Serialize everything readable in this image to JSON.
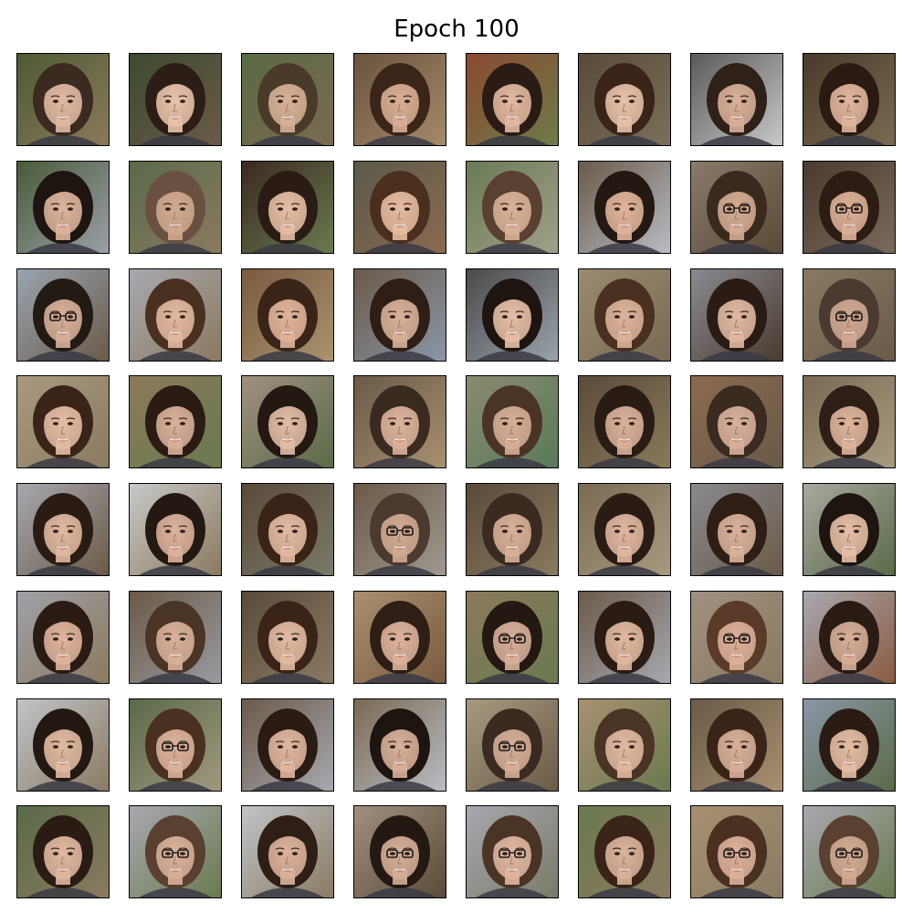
{
  "figure": {
    "title": "Epoch 100"
  },
  "grid": {
    "rows": 8,
    "cols": 8,
    "image_kind": "generated-face",
    "cells": [
      {
        "hair": "#3a2a20",
        "skin": "#e0b9a3",
        "bg": "#8a7a5a",
        "bg2": "#4e5a35",
        "glasses": false
      },
      {
        "hair": "#2c1e16",
        "skin": "#e8c2ab",
        "bg": "#6a5a4a",
        "bg2": "#3d4a30",
        "glasses": false
      },
      {
        "hair": "#4a3a2a",
        "skin": "#d6b096",
        "bg": "#7a6a50",
        "bg2": "#5a6a45",
        "glasses": false
      },
      {
        "hair": "#3b2519",
        "skin": "#d8ae93",
        "bg": "#a58a6a",
        "bg2": "#6a5440",
        "glasses": false
      },
      {
        "hair": "#2a1c14",
        "skin": "#e2b8a0",
        "bg": "#6e7a4a",
        "bg2": "#8a4a30",
        "glasses": false
      },
      {
        "hair": "#3a2418",
        "skin": "#e7c0a8",
        "bg": "#7a6f5a",
        "bg2": "#5a4a3a",
        "glasses": false
      },
      {
        "hair": "#2f2018",
        "skin": "#d9b09a",
        "bg": "#c8c8c8",
        "bg2": "#5a5a5a",
        "glasses": false
      },
      {
        "hair": "#2a1a12",
        "skin": "#e0b59e",
        "bg": "#7a6a52",
        "bg2": "#4a3a2a",
        "glasses": false
      },
      {
        "hair": "#1e1410",
        "skin": "#dcb49c",
        "bg": "#9aa0a8",
        "bg2": "#4a5a3a",
        "glasses": false
      },
      {
        "hair": "#6a5040",
        "skin": "#cfa98f",
        "bg": "#8a7a60",
        "bg2": "#5a6a4a",
        "glasses": false
      },
      {
        "hair": "#2a1c14",
        "skin": "#e6bda4",
        "bg": "#6a7a50",
        "bg2": "#3a2a20",
        "glasses": false
      },
      {
        "hair": "#4a2e1e",
        "skin": "#e5bba0",
        "bg": "#8a6a50",
        "bg2": "#5a5a4a",
        "glasses": false
      },
      {
        "hair": "#5a4030",
        "skin": "#d8b298",
        "bg": "#a0a08a",
        "bg2": "#6a7a55",
        "glasses": false
      },
      {
        "hair": "#241812",
        "skin": "#e0b49a",
        "bg": "#b8bcc4",
        "bg2": "#6a5a4a",
        "glasses": false
      },
      {
        "hair": "#3a2a1e",
        "skin": "#d4ab92",
        "bg": "#5a4a3a",
        "bg2": "#8a7a6a",
        "glasses": true
      },
      {
        "hair": "#2c1c14",
        "skin": "#dcb098",
        "bg": "#7a6a5a",
        "bg2": "#4a3a30",
        "glasses": true
      },
      {
        "hair": "#241a14",
        "skin": "#d8b09a",
        "bg": "#6a5a4a",
        "bg2": "#9aa4b0",
        "glasses": true
      },
      {
        "hair": "#4a3020",
        "skin": "#e2b8a0",
        "bg": "#8a7a60",
        "bg2": "#a8a8b0",
        "glasses": false
      },
      {
        "hair": "#3a2418",
        "skin": "#e0b49a",
        "bg": "#a8946e",
        "bg2": "#7a5a40",
        "glasses": false
      },
      {
        "hair": "#2e1e16",
        "skin": "#d8b09a",
        "bg": "#8a96a8",
        "bg2": "#6a5a4a",
        "glasses": false
      },
      {
        "hair": "#1e1410",
        "skin": "#e6bea6",
        "bg": "#9aa2ac",
        "bg2": "#4a4a4a",
        "glasses": false
      },
      {
        "hair": "#4a3020",
        "skin": "#dcb29a",
        "bg": "#7a6a54",
        "bg2": "#9a8a70",
        "glasses": false
      },
      {
        "hair": "#2a1c14",
        "skin": "#e0b8a2",
        "bg": "#4a3a30",
        "bg2": "#8a8a90",
        "glasses": false
      },
      {
        "hair": "#4a3a30",
        "skin": "#cfa892",
        "bg": "#6a5a48",
        "bg2": "#8a7a64",
        "glasses": true
      },
      {
        "hair": "#3a2418",
        "skin": "#e4bca4",
        "bg": "#8a7a60",
        "bg2": "#a89a80",
        "glasses": false
      },
      {
        "hair": "#2a1c14",
        "skin": "#d8b09a",
        "bg": "#6a7a50",
        "bg2": "#8a7a5a",
        "glasses": false
      },
      {
        "hair": "#241812",
        "skin": "#e2bca6",
        "bg": "#5a6a48",
        "bg2": "#a09080",
        "glasses": false
      },
      {
        "hair": "#3a2a20",
        "skin": "#dcb29c",
        "bg": "#a89070",
        "bg2": "#6a5a48",
        "glasses": false
      },
      {
        "hair": "#4a3426",
        "skin": "#d6ae96",
        "bg": "#5a7a5a",
        "bg2": "#8a8a70",
        "glasses": false
      },
      {
        "hair": "#2a1c14",
        "skin": "#dab09a",
        "bg": "#8a7a5a",
        "bg2": "#5a4a3a",
        "glasses": false
      },
      {
        "hair": "#3a2a20",
        "skin": "#d8b09c",
        "bg": "#6a5a48",
        "bg2": "#8a6a50",
        "glasses": false
      },
      {
        "hair": "#2e1e16",
        "skin": "#deb49c",
        "bg": "#a89a80",
        "bg2": "#7a6a54",
        "glasses": false
      },
      {
        "hair": "#2a1c14",
        "skin": "#e0b8a0",
        "bg": "#6a5a48",
        "bg2": "#a8a8b0",
        "glasses": false
      },
      {
        "hair": "#241812",
        "skin": "#dcb29c",
        "bg": "#8a7a60",
        "bg2": "#c8c8c8",
        "glasses": false
      },
      {
        "hair": "#3a2418",
        "skin": "#e2baa2",
        "bg": "#7a7a6a",
        "bg2": "#5a4a3a",
        "glasses": false
      },
      {
        "hair": "#4a3a30",
        "skin": "#d2aa92",
        "bg": "#a09890",
        "bg2": "#6a5a4a",
        "glasses": true
      },
      {
        "hair": "#3a2a20",
        "skin": "#d8b098",
        "bg": "#8a7a60",
        "bg2": "#5a4a3a",
        "glasses": false
      },
      {
        "hair": "#2a1c14",
        "skin": "#e0b6a0",
        "bg": "#a89a80",
        "bg2": "#7a6a54",
        "glasses": false
      },
      {
        "hair": "#2e1e16",
        "skin": "#dab29c",
        "bg": "#6a5a48",
        "bg2": "#8a8a90",
        "glasses": false
      },
      {
        "hair": "#1e1410",
        "skin": "#e6bea6",
        "bg": "#5a6a48",
        "bg2": "#a8a8a0",
        "glasses": false
      },
      {
        "hair": "#2a1c14",
        "skin": "#e0b49c",
        "bg": "#8a7a60",
        "bg2": "#a0a0a8",
        "glasses": false
      },
      {
        "hair": "#4a3426",
        "skin": "#d8b09a",
        "bg": "#9a9aa0",
        "bg2": "#6a5a48",
        "glasses": false
      },
      {
        "hair": "#3a2418",
        "skin": "#e2baa2",
        "bg": "#8a7a64",
        "bg2": "#5a4a3a",
        "glasses": false
      },
      {
        "hair": "#2e1e16",
        "skin": "#dcb29c",
        "bg": "#7a5a40",
        "bg2": "#a89070",
        "glasses": false
      },
      {
        "hair": "#241812",
        "skin": "#d8b09a",
        "bg": "#6a7a50",
        "bg2": "#8a7a5a",
        "glasses": true
      },
      {
        "hair": "#2a1c14",
        "skin": "#e0b8a0",
        "bg": "#a8a8b0",
        "bg2": "#6a5a4a",
        "glasses": false
      },
      {
        "hair": "#5a3a28",
        "skin": "#dcb09a",
        "bg": "#8a7a60",
        "bg2": "#a09080",
        "glasses": true
      },
      {
        "hair": "#2a1c14",
        "skin": "#d6ae98",
        "bg": "#8a5a40",
        "bg2": "#a8a8b0",
        "glasses": false
      },
      {
        "hair": "#241812",
        "skin": "#e2baa2",
        "bg": "#8a7a64",
        "bg2": "#c0c4c8",
        "glasses": false
      },
      {
        "hair": "#4a3020",
        "skin": "#dcb29c",
        "bg": "#a09880",
        "bg2": "#5a6a48",
        "glasses": true
      },
      {
        "hair": "#2a1c14",
        "skin": "#e0b6a0",
        "bg": "#a8a8b0",
        "bg2": "#6a5a4a",
        "glasses": false
      },
      {
        "hair": "#1e1410",
        "skin": "#d8b09a",
        "bg": "#b8bcc4",
        "bg2": "#7a6a54",
        "glasses": false
      },
      {
        "hair": "#3a2a20",
        "skin": "#d6ae98",
        "bg": "#6a5a48",
        "bg2": "#a89a80",
        "glasses": true
      },
      {
        "hair": "#4a3426",
        "skin": "#e0b8a0",
        "bg": "#6a7a50",
        "bg2": "#a89070",
        "glasses": false
      },
      {
        "hair": "#3a2418",
        "skin": "#d8b09a",
        "bg": "#a89070",
        "bg2": "#6a5a48",
        "glasses": false
      },
      {
        "hair": "#2a1c14",
        "skin": "#e4bca4",
        "bg": "#5a6a48",
        "bg2": "#8a96a8",
        "glasses": false
      },
      {
        "hair": "#2a1c14",
        "skin": "#e0b8a0",
        "bg": "#8a7a60",
        "bg2": "#5a6a48",
        "glasses": false
      },
      {
        "hair": "#5a4030",
        "skin": "#d8b09a",
        "bg": "#6a7a50",
        "bg2": "#a8a8b0",
        "glasses": true
      },
      {
        "hair": "#2e1e16",
        "skin": "#dcb29c",
        "bg": "#8a7a64",
        "bg2": "#c0c4c8",
        "glasses": false
      },
      {
        "hair": "#241812",
        "skin": "#d6ae98",
        "bg": "#5a4a3a",
        "bg2": "#a09080",
        "glasses": true
      },
      {
        "hair": "#4a3426",
        "skin": "#e0b6a0",
        "bg": "#7a7a6a",
        "bg2": "#a8a8b0",
        "glasses": true
      },
      {
        "hair": "#3a2418",
        "skin": "#dab29c",
        "bg": "#8a7a60",
        "bg2": "#6a7a50",
        "glasses": false
      },
      {
        "hair": "#4a3020",
        "skin": "#dcb09a",
        "bg": "#8a7a64",
        "bg2": "#a89070",
        "glasses": true
      },
      {
        "hair": "#5a4030",
        "skin": "#d2aa92",
        "bg": "#6a7a50",
        "bg2": "#a8a8b0",
        "glasses": true
      }
    ]
  }
}
